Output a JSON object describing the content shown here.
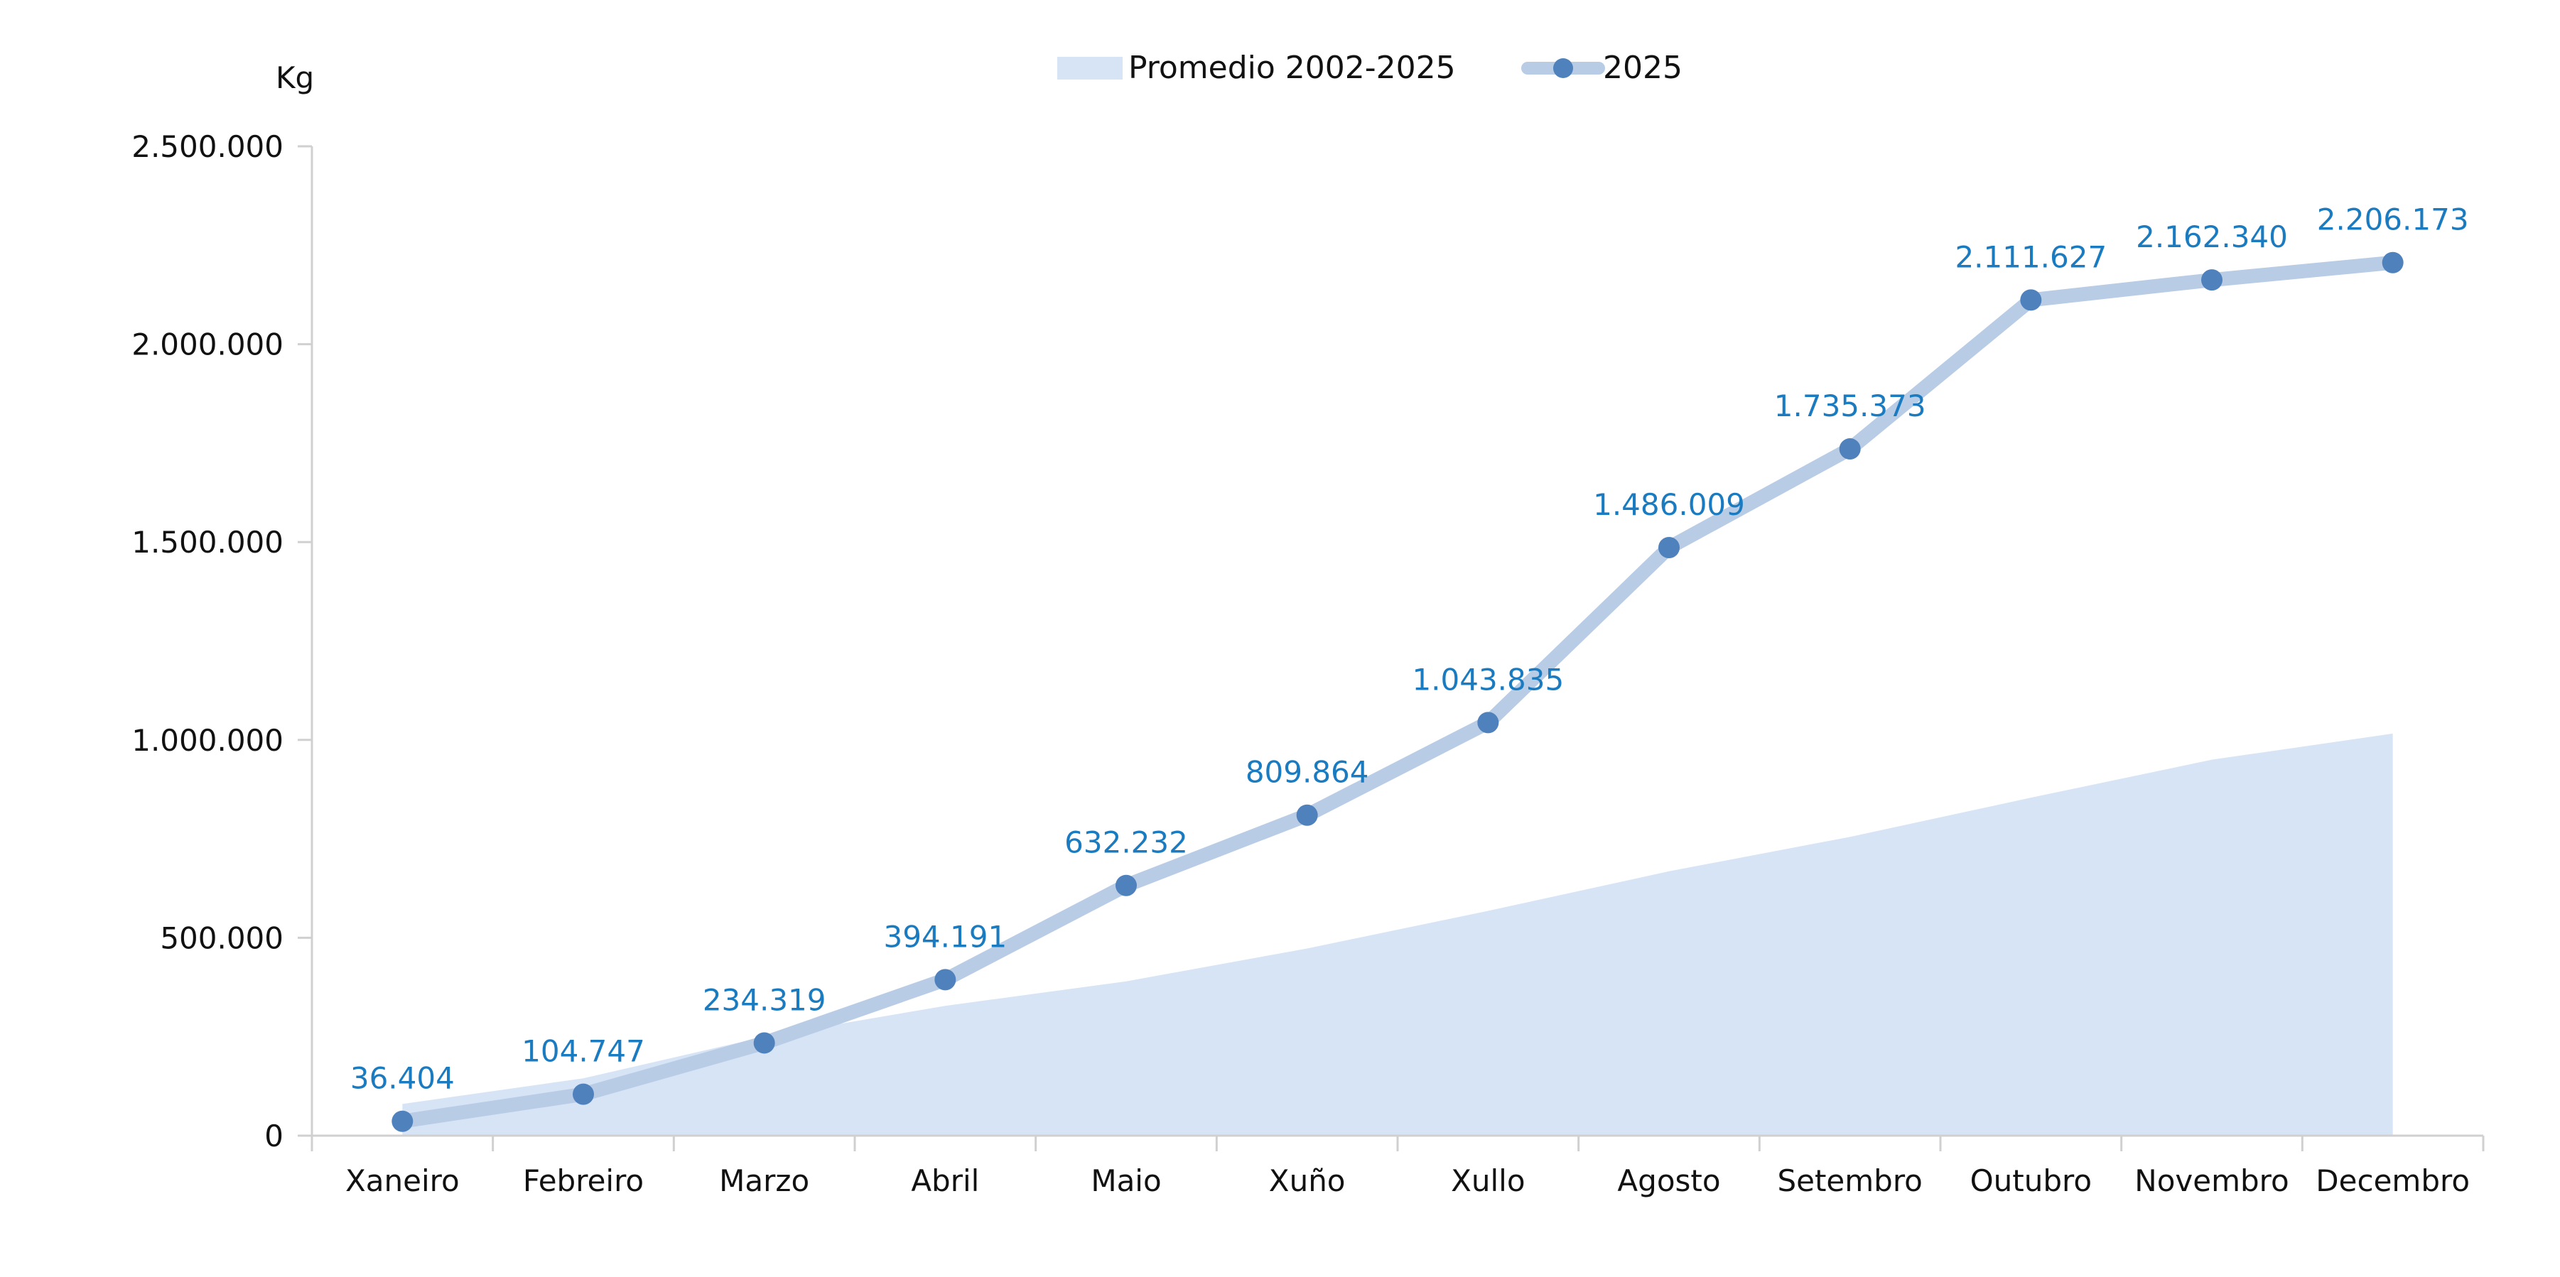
{
  "chart_data": {
    "type": "line",
    "ylabel": "Kg",
    "ylim": [
      0,
      2500000
    ],
    "yticks": [
      0,
      500000,
      1000000,
      1500000,
      2000000,
      2500000
    ],
    "ytick_labels": [
      "0",
      "500.000",
      "1.000.000",
      "1.500.000",
      "2.000.000",
      "2.500.000"
    ],
    "categories": [
      "Xaneiro",
      "Febreiro",
      "Marzo",
      "Abril",
      "Maio",
      "Xuño",
      "Xullo",
      "Agosto",
      "Setembro",
      "Outubro",
      "Novembro",
      "Decembro"
    ],
    "legend_position": "top",
    "grid": false,
    "series": [
      {
        "name": "Promedio 2002-2025",
        "type": "area",
        "color": "#d7e4f5",
        "values": [
          80000,
          145000,
          250000,
          328000,
          390000,
          473000,
          568000,
          668000,
          755000,
          854000,
          950000,
          1016000
        ]
      },
      {
        "name": "2025",
        "type": "line",
        "color": "#b8cce6",
        "marker_color": "#4f81bd",
        "values": [
          36404,
          104747,
          234319,
          394191,
          632232,
          809864,
          1043835,
          1486009,
          1735373,
          2111627,
          2162340,
          2206173
        ],
        "data_labels": [
          "36.404",
          "104.747",
          "234.319",
          "394.191",
          "632.232",
          "809.864",
          "1.043.835",
          "1.486.009",
          "1.735.373",
          "2.111.627",
          "2.162.340",
          "2.206.173"
        ],
        "label_color": "#1a7bc0"
      }
    ]
  }
}
